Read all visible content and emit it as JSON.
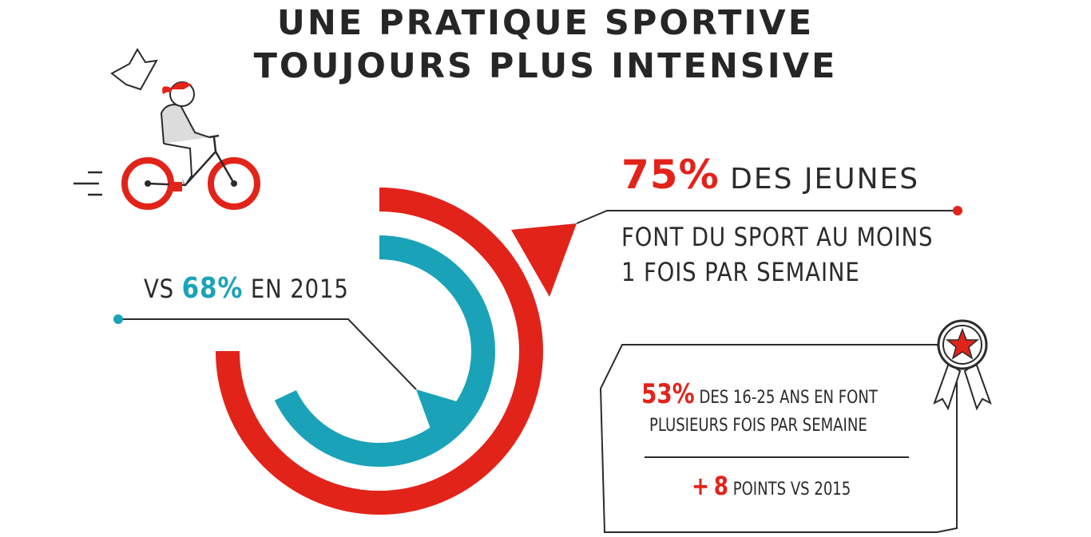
{
  "title": [
    "UNE PRATIQUE SPORTIVE",
    "TOUJOURS PLUS INTENSIVE"
  ],
  "colors": {
    "red": "#e2231a",
    "teal": "#1aa3b8",
    "dark": "#2b2b2b"
  },
  "main_stat": {
    "value": "75%",
    "label": "DES JEUNES",
    "sub_line1": "FONT DU SPORT AU MOINS",
    "sub_line2": "1 FOIS PAR SEMAINE"
  },
  "previous_stat": {
    "prefix": "VS",
    "value": "68%",
    "suffix": "EN 2015"
  },
  "box": {
    "value": "53%",
    "line1": "DES 16-25 ANS EN FONT",
    "line2": "PLUSIEURS FOIS PAR SEMAINE",
    "delta_sign": "+",
    "delta_value": "8",
    "delta_text": "POINTS VS 2015"
  },
  "icons": [
    "cyclist-icon",
    "award-ribbon-icon"
  ],
  "chart_data": {
    "type": "radial-bar",
    "series": [
      {
        "name": "",
        "value": 75,
        "color": "#e2231a"
      },
      {
        "name": "",
        "value": 68,
        "color": "#1aa3b8"
      }
    ],
    "max": 100
  }
}
